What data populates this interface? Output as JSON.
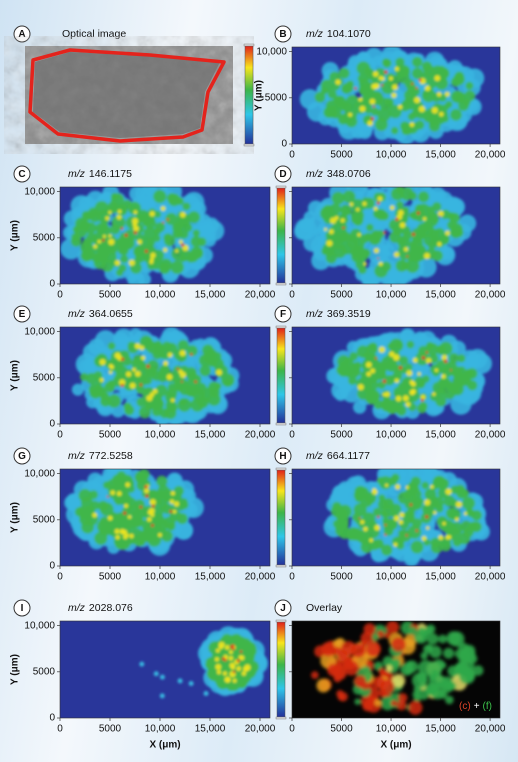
{
  "figure": {
    "mz_prefix": "m/z",
    "panels": [
      {
        "letter": "A",
        "title": "Optical image"
      },
      {
        "letter": "B",
        "mz": "104.1070"
      },
      {
        "letter": "C",
        "mz": "146.1175"
      },
      {
        "letter": "D",
        "mz": "348.0706"
      },
      {
        "letter": "E",
        "mz": "364.0655"
      },
      {
        "letter": "F",
        "mz": "369.3519"
      },
      {
        "letter": "G",
        "mz": "772.5258"
      },
      {
        "letter": "H",
        "mz": "664.1177"
      },
      {
        "letter": "I",
        "mz": "2028.076"
      },
      {
        "letter": "J",
        "title": "Overlay",
        "legend": [
          "(c)",
          "+",
          "(f)"
        ]
      }
    ],
    "axes": {
      "xlabel": "X (μm)",
      "ylabel": "Y (μm)",
      "xlim": [
        0,
        21000
      ],
      "xticks": [
        0,
        5000,
        {
          "value": 10000,
          "label": "10,000"
        },
        {
          "value": 15000,
          "label": "15,000"
        },
        {
          "value": 20000,
          "label": "20,000"
        }
      ],
      "ylim": [
        0,
        10500
      ],
      "yticks": [
        0,
        5000,
        {
          "value": 10000,
          "label": "10,000"
        }
      ]
    }
  }
}
